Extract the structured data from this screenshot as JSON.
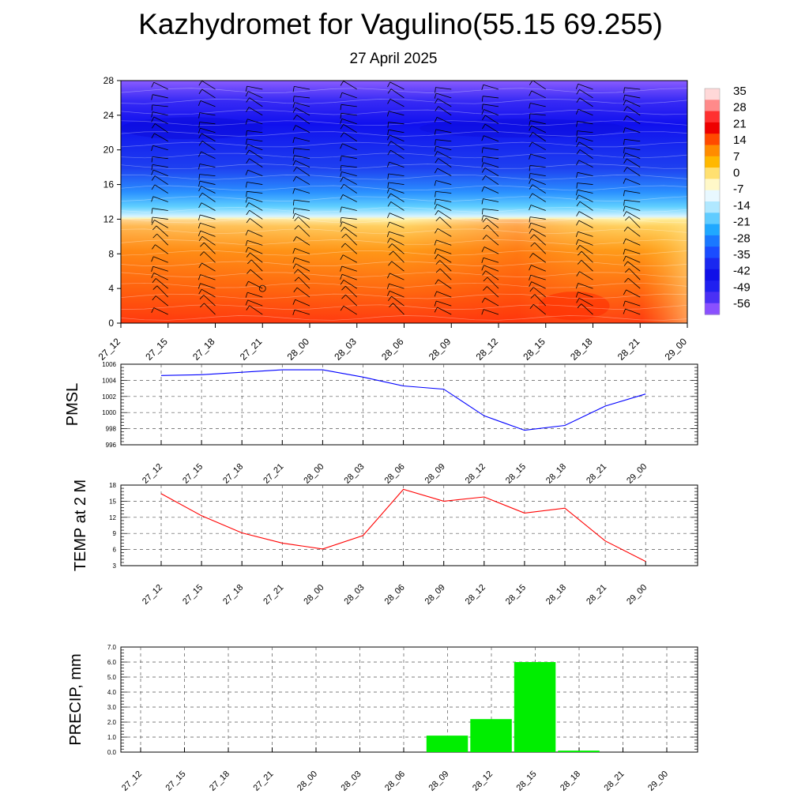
{
  "title": "Kazhydromet for Vagulino(55.15 69.255)",
  "subtitle": "27 April 2025",
  "chart_data": [
    {
      "type": "heatmap",
      "name": "vertical-cross-section",
      "x": [
        "27_12",
        "27_15",
        "27_18",
        "27_21",
        "28_00",
        "28_03",
        "28_06",
        "28_09",
        "28_12",
        "28_15",
        "28_18",
        "28_21",
        "29_00"
      ],
      "y_ticks": [
        0,
        4,
        8,
        12,
        16,
        20,
        24,
        28
      ],
      "ylim": [
        0,
        28
      ],
      "colorbar_labels": [
        "35",
        "28",
        "21",
        "14",
        "7",
        "0",
        "-7",
        "-14",
        "-21",
        "-28",
        "-35",
        "-42",
        "-49",
        "-56"
      ],
      "overlay": "wind barbs",
      "surface_temperature_by_time": [
        16,
        13,
        10,
        8,
        6,
        9,
        16,
        15,
        17,
        18,
        14,
        9,
        5
      ]
    },
    {
      "type": "line",
      "name": "pmsl",
      "ylabel": "PMSL",
      "x": [
        "27_12",
        "27_15",
        "27_18",
        "27_21",
        "28_00",
        "28_03",
        "28_06",
        "28_09",
        "28_12",
        "28_15",
        "28_18",
        "28_21",
        "29_00"
      ],
      "values": [
        1004.6,
        1004.7,
        1005.0,
        1005.3,
        1005.3,
        1004.4,
        1003.3,
        1002.9,
        999.6,
        997.8,
        998.4,
        1000.8,
        1002.3
      ],
      "ylim": [
        996,
        1006
      ],
      "y_ticks": [
        996,
        998,
        1000,
        1002,
        1004,
        1006
      ],
      "color": "#0000ff",
      "grid": true
    },
    {
      "type": "line",
      "name": "temp-2m",
      "ylabel": "TEMP at 2 M",
      "x": [
        "27_12",
        "27_15",
        "27_18",
        "27_21",
        "28_00",
        "28_03",
        "28_06",
        "28_09",
        "28_12",
        "28_15",
        "28_18",
        "28_21",
        "29_00"
      ],
      "values": [
        16.4,
        12.3,
        9.1,
        7.2,
        6.1,
        8.6,
        17.2,
        15.0,
        15.8,
        12.8,
        13.7,
        7.6,
        3.8
      ],
      "ylim": [
        3,
        18
      ],
      "y_ticks": [
        3,
        6,
        9,
        12,
        15,
        18
      ],
      "color": "#ff0000",
      "grid": true
    },
    {
      "type": "bar",
      "name": "precip",
      "ylabel": "PRECIP, mm",
      "x": [
        "27_12",
        "27_15",
        "27_18",
        "27_21",
        "28_00",
        "28_03",
        "28_06",
        "28_09",
        "28_12",
        "28_15",
        "28_18",
        "28_21",
        "29_00"
      ],
      "values": [
        0,
        0,
        0,
        0,
        0,
        0,
        0,
        1.1,
        2.2,
        6.0,
        0.1,
        0,
        0
      ],
      "ylim": [
        0,
        7
      ],
      "y_ticks": [
        "0.0",
        "1.0",
        "2.0",
        "3.0",
        "4.0",
        "5.0",
        "6.0",
        "7.0"
      ],
      "color": "#00ee00",
      "grid": true
    }
  ]
}
